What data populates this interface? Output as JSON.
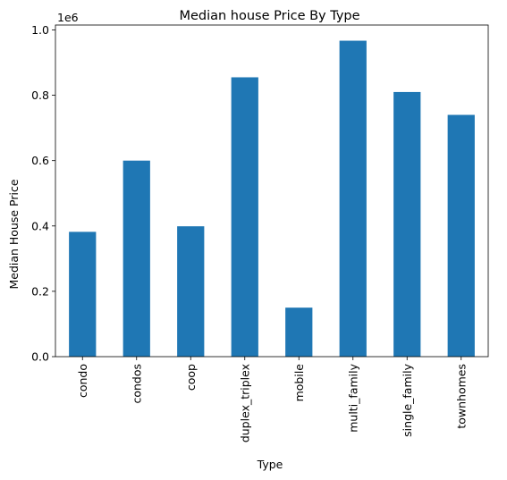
{
  "chart_data": {
    "type": "bar",
    "title": "Median house Price By Type",
    "xlabel": "Type",
    "ylabel": "Median House Price",
    "y_offset_label": "1e6",
    "categories": [
      "condo",
      "condos",
      "coop",
      "duplex_triplex",
      "mobile",
      "multi_family",
      "single_family",
      "townhomes"
    ],
    "values": [
      382000,
      600000,
      399000,
      855000,
      150000,
      967000,
      810000,
      740000
    ],
    "ylim": [
      0,
      1015000
    ],
    "yticks": [
      0,
      200000,
      400000,
      600000,
      800000,
      1000000
    ],
    "ytick_labels": [
      "0.0",
      "0.2",
      "0.4",
      "0.6",
      "0.8",
      "1.0"
    ],
    "bar_color": "#1f77b4",
    "grid": false,
    "legend": "none"
  }
}
